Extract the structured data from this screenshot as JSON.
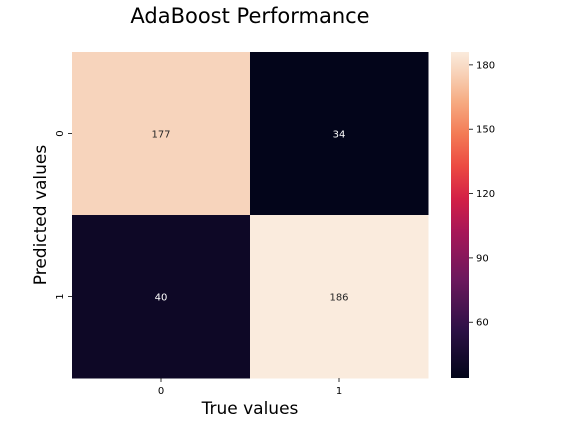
{
  "chart_data": {
    "type": "heatmap",
    "title": "AdaBoost Performance",
    "xlabel": "True values",
    "ylabel": "Predicted values",
    "x_categories": [
      "0",
      "1"
    ],
    "y_categories": [
      "0",
      "1"
    ],
    "values": [
      [
        177,
        34
      ],
      [
        40,
        186
      ]
    ],
    "colorbar": {
      "range": [
        34,
        186
      ],
      "ticks": [
        60,
        90,
        120,
        150,
        180
      ],
      "colormap": "rocket"
    },
    "grid": false,
    "legend": "none"
  }
}
